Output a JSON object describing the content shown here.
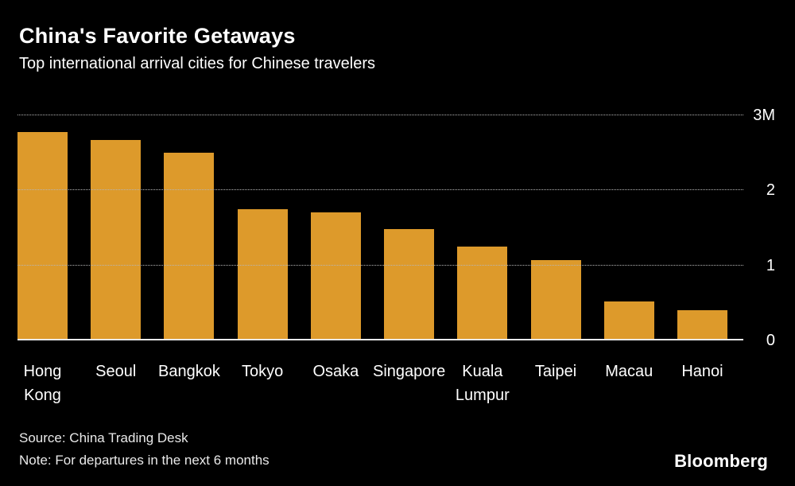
{
  "header": {
    "title": "China's Favorite Getaways",
    "subtitle": "Top international arrival cities for Chinese travelers"
  },
  "chart_data": {
    "type": "bar",
    "categories": [
      "Hong Kong",
      "Seoul",
      "Bangkok",
      "Tokyo",
      "Osaka",
      "Singapore",
      "Kuala Lumpur",
      "Taipei",
      "Macau",
      "Hanoi"
    ],
    "values": [
      2.78,
      2.67,
      2.5,
      1.75,
      1.71,
      1.48,
      1.25,
      1.07,
      0.52,
      0.4
    ],
    "title": "China's Favorite Getaways",
    "subtitle": "Top international arrival cities for Chinese travelers",
    "xlabel": "",
    "ylabel": "",
    "ylim": [
      0,
      3
    ],
    "yticks": [
      {
        "value": 3,
        "label": "3M"
      },
      {
        "value": 2,
        "label": "2"
      },
      {
        "value": 1,
        "label": "1"
      },
      {
        "value": 0,
        "label": "0"
      }
    ],
    "bar_color": "#dd9a2b",
    "background_color": "#000000",
    "grid": "horizontal-dotted",
    "legend": "none",
    "y_axis_position": "right"
  },
  "footer": {
    "source": "Source: China Trading Desk",
    "note": "Note: For departures in the next 6 months",
    "brand": "Bloomberg"
  }
}
